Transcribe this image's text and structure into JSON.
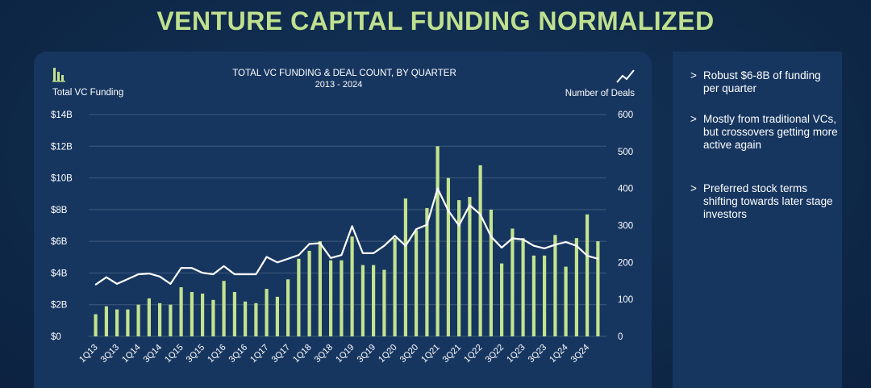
{
  "page": {
    "title": "VENTURE CAPITAL FUNDING NORMALIZED"
  },
  "sidebar": {
    "bullets": [
      {
        "marker": ">",
        "text": "Robust $6-8B of funding per quarter"
      },
      {
        "marker": ">",
        "text": "Mostly from traditional VCs, but crossovers getting more active again"
      },
      {
        "marker": ">",
        "text": "Preferred stock terms shifting towards later stage investors"
      }
    ]
  },
  "colors": {
    "bar": "#c3e38e",
    "line": "#ffffff",
    "title": "#bfe08e"
  },
  "chart_data": {
    "type": "bar",
    "title": "TOTAL VC FUNDING & DEAL COUNT, BY QUARTER",
    "subtitle": "2013 - 2024",
    "left_axis_label": "Total VC Funding",
    "right_axis_label": "Number of Deals",
    "left_ylim": [
      0,
      14
    ],
    "right_ylim": [
      0,
      600
    ],
    "left_ticks": [
      {
        "value": 0,
        "label": "$0"
      },
      {
        "value": 2,
        "label": "$2B"
      },
      {
        "value": 4,
        "label": "$4B"
      },
      {
        "value": 6,
        "label": "$6B"
      },
      {
        "value": 8,
        "label": "$8B"
      },
      {
        "value": 10,
        "label": "$10B"
      },
      {
        "value": 12,
        "label": "$12B"
      },
      {
        "value": 14,
        "label": "$14B"
      }
    ],
    "right_ticks": [
      {
        "value": 0,
        "label": "0"
      },
      {
        "value": 100,
        "label": "100"
      },
      {
        "value": 200,
        "label": "200"
      },
      {
        "value": 300,
        "label": "300"
      },
      {
        "value": 400,
        "label": "400"
      },
      {
        "value": 500,
        "label": "500"
      },
      {
        "value": 600,
        "label": "600"
      }
    ],
    "categories": [
      "1Q13",
      "2Q13",
      "3Q13",
      "4Q13",
      "1Q14",
      "2Q14",
      "3Q14",
      "4Q14",
      "1Q15",
      "2Q15",
      "3Q15",
      "4Q15",
      "1Q16",
      "2Q16",
      "3Q16",
      "4Q16",
      "1Q17",
      "2Q17",
      "3Q17",
      "4Q17",
      "1Q18",
      "2Q18",
      "3Q18",
      "4Q18",
      "1Q19",
      "2Q19",
      "3Q19",
      "4Q19",
      "1Q20",
      "2Q20",
      "3Q20",
      "4Q20",
      "1Q21",
      "2Q21",
      "3Q21",
      "4Q21",
      "1Q22",
      "2Q22",
      "3Q22",
      "4Q22",
      "1Q23",
      "2Q23",
      "3Q23",
      "4Q23",
      "1Q24",
      "2Q24",
      "3Q24",
      "4Q24"
    ],
    "x_tick_labels": [
      "1Q13",
      "3Q13",
      "1Q14",
      "3Q14",
      "1Q15",
      "3Q15",
      "1Q16",
      "3Q16",
      "1Q17",
      "3Q17",
      "1Q18",
      "3Q18",
      "1Q19",
      "3Q19",
      "1Q20",
      "3Q20",
      "1Q21",
      "3Q21",
      "1Q22",
      "3Q22",
      "1Q23",
      "3Q23",
      "1Q24",
      "3Q24"
    ],
    "series": [
      {
        "name": "Total VC Funding",
        "axis": "left",
        "type": "bar",
        "values": [
          1.4,
          1.9,
          1.7,
          1.7,
          2.0,
          2.4,
          2.1,
          2.0,
          3.1,
          2.8,
          2.7,
          2.3,
          3.5,
          2.8,
          2.2,
          2.1,
          3.0,
          2.5,
          3.6,
          4.9,
          5.4,
          6.0,
          4.8,
          4.8,
          6.3,
          4.5,
          4.5,
          4.2,
          6.2,
          8.7,
          6.7,
          8.1,
          12.0,
          10.0,
          8.6,
          8.8,
          10.8,
          8.0,
          4.6,
          6.8,
          6.2,
          5.1,
          5.1,
          6.4,
          4.4,
          6.2,
          7.7,
          6.0
        ]
      },
      {
        "name": "Number of Deals",
        "axis": "right",
        "type": "line",
        "values": [
          140,
          160,
          142,
          155,
          168,
          170,
          162,
          142,
          185,
          185,
          172,
          168,
          190,
          168,
          168,
          168,
          215,
          200,
          210,
          220,
          250,
          252,
          212,
          220,
          298,
          225,
          225,
          245,
          272,
          245,
          290,
          302,
          400,
          340,
          300,
          355,
          330,
          270,
          240,
          265,
          262,
          245,
          238,
          248,
          255,
          245,
          218,
          210
        ]
      }
    ]
  }
}
